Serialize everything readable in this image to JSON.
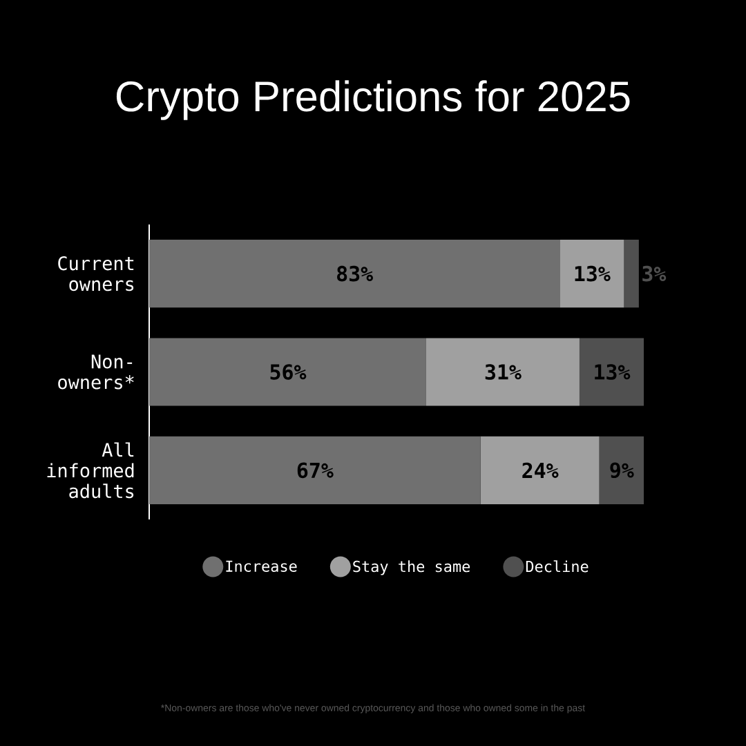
{
  "chart_data": {
    "type": "bar",
    "orientation": "horizontal",
    "stacked": true,
    "title": "Crypto Predictions for 2025",
    "categories": [
      "Current owners",
      "Non-owners*",
      "All informed adults"
    ],
    "series": [
      {
        "name": "Increase",
        "color": "#707070",
        "values": [
          83,
          56,
          67
        ],
        "value_labels": [
          "83%",
          "56%",
          "67%"
        ]
      },
      {
        "name": "Stay the same",
        "color": "#a0a0a0",
        "values": [
          13,
          31,
          24
        ],
        "value_labels": [
          "13%",
          "31%",
          "24%"
        ]
      },
      {
        "name": "Decline",
        "color": "#505050",
        "values": [
          3,
          13,
          9
        ],
        "value_labels": [
          "3%",
          "13%",
          "9%"
        ]
      }
    ],
    "legend": "bottom",
    "annotations": [
      "*Non-owners are those who've never owned cryptocurrency and those who owned some in the past"
    ]
  }
}
